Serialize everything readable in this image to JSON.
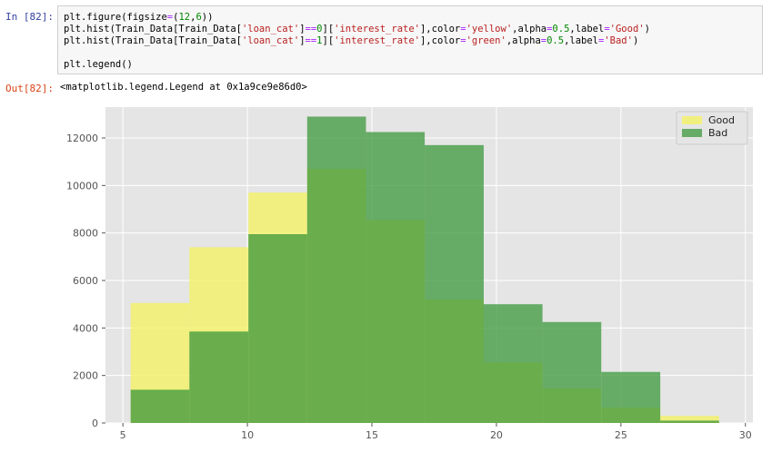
{
  "notebook": {
    "in_prompt": "In [82]:",
    "out_prompt": "Out[82]:",
    "code_lines": [
      [
        {
          "t": "plt.figure(figsize"
        },
        {
          "t": "=",
          "c": "op"
        },
        {
          "t": "("
        },
        {
          "t": "12",
          "c": "num"
        },
        {
          "t": ","
        },
        {
          "t": "6",
          "c": "num"
        },
        {
          "t": "))"
        }
      ],
      [
        {
          "t": "plt.hist(Train_Data[Train_Data["
        },
        {
          "t": "'loan_cat'",
          "c": "str"
        },
        {
          "t": "]"
        },
        {
          "t": "==",
          "c": "op"
        },
        {
          "t": "0",
          "c": "num"
        },
        {
          "t": "]["
        },
        {
          "t": "'interest_rate'",
          "c": "str"
        },
        {
          "t": "],color"
        },
        {
          "t": "=",
          "c": "op"
        },
        {
          "t": "'yellow'",
          "c": "str"
        },
        {
          "t": ",alpha"
        },
        {
          "t": "=",
          "c": "op"
        },
        {
          "t": "0.5",
          "c": "num"
        },
        {
          "t": ",label"
        },
        {
          "t": "=",
          "c": "op"
        },
        {
          "t": "'Good'",
          "c": "str"
        },
        {
          "t": ")"
        }
      ],
      [
        {
          "t": "plt.hist(Train_Data[Train_Data["
        },
        {
          "t": "'loan_cat'",
          "c": "str"
        },
        {
          "t": "]"
        },
        {
          "t": "==",
          "c": "op"
        },
        {
          "t": "1",
          "c": "num"
        },
        {
          "t": "]["
        },
        {
          "t": "'interest_rate'",
          "c": "str"
        },
        {
          "t": "],color"
        },
        {
          "t": "=",
          "c": "op"
        },
        {
          "t": "'green'",
          "c": "str"
        },
        {
          "t": ",alpha"
        },
        {
          "t": "=",
          "c": "op"
        },
        {
          "t": "0.5",
          "c": "num"
        },
        {
          "t": ",label"
        },
        {
          "t": "=",
          "c": "op"
        },
        {
          "t": "'Bad'",
          "c": "str"
        },
        {
          "t": ")"
        }
      ],
      [],
      [
        {
          "t": "plt.legend()"
        }
      ]
    ],
    "output_text": "<matplotlib.legend.Legend at 0x1a9ce9e86d0>"
  },
  "colors": {
    "good": "#f4f15c",
    "bad": "#3b973b",
    "plot_bg": "#e5e5e5",
    "grid": "#ffffff"
  },
  "chart_data": {
    "type": "bar",
    "xlim": [
      4.3,
      30.3
    ],
    "ylim": [
      0,
      13300
    ],
    "xticks": [
      5,
      10,
      15,
      20,
      25,
      30
    ],
    "yticks": [
      0,
      2000,
      4000,
      6000,
      8000,
      10000,
      12000
    ],
    "grid": true,
    "legend_position": "top-right",
    "series": [
      {
        "name": "Good",
        "color": "yellow",
        "alpha": 0.5,
        "bin_edges": [
          5.31,
          7.67,
          10.04,
          12.4,
          14.76,
          17.12,
          19.49,
          21.85,
          24.21,
          26.58,
          28.94
        ],
        "counts": [
          5050,
          7400,
          9700,
          10700,
          8550,
          5200,
          2550,
          1450,
          650,
          300
        ]
      },
      {
        "name": "Bad",
        "color": "green",
        "alpha": 0.5,
        "bin_edges": [
          5.31,
          7.67,
          10.04,
          12.4,
          14.76,
          17.12,
          19.49,
          21.85,
          24.21,
          26.58,
          28.94
        ],
        "counts": [
          1400,
          3850,
          7950,
          12900,
          12250,
          11700,
          5000,
          4250,
          2150,
          100
        ]
      }
    ]
  }
}
